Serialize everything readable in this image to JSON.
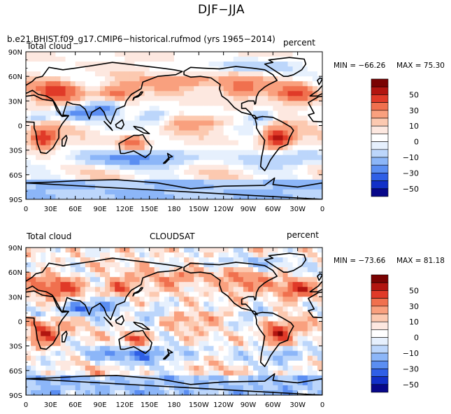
{
  "figure_title": "DJF−JJA",
  "chart_data": [
    {
      "type": "heatmap",
      "panel": "model",
      "title": "b.e21.BHIST.f09_g17.CMIP6−historical.rufmod (yrs 1965−2014)",
      "left_label": "Total cloud",
      "right_label": "percent",
      "center_label": "",
      "stats": {
        "min_label": "MIN = −66.26",
        "max_label": "MAX =  75.30",
        "min": -66.26,
        "max": 75.3
      },
      "x_ticks": [
        "0",
        "30E",
        "60E",
        "90E",
        "120E",
        "150E",
        "180",
        "150W",
        "120W",
        "90W",
        "60W",
        "30W",
        "0"
      ],
      "y_ticks": [
        "90N",
        "60N",
        "30N",
        "0",
        "30S",
        "60S",
        "90S"
      ],
      "xlim": [
        0,
        360
      ],
      "ylim": [
        -90,
        90
      ],
      "colorbar_levels": [
        -60,
        -50,
        -40,
        -30,
        -20,
        -10,
        -5,
        0,
        5,
        10,
        20,
        30,
        40,
        50,
        60
      ],
      "colorbar_labels": [
        "50",
        "30",
        "10",
        "0",
        "−10",
        "−30",
        "−50"
      ]
    },
    {
      "type": "heatmap",
      "panel": "observation",
      "title": "",
      "left_label": "Total cloud",
      "center_label": "CLOUDSAT",
      "right_label": "percent",
      "stats": {
        "min_label": "MIN = −73.66",
        "max_label": "MAX =  81.18",
        "min": -73.66,
        "max": 81.18
      },
      "x_ticks": [
        "0",
        "30E",
        "60E",
        "90E",
        "120E",
        "150E",
        "180",
        "150W",
        "120W",
        "90W",
        "60W",
        "30W",
        "0"
      ],
      "y_ticks": [
        "90N",
        "60N",
        "30N",
        "0",
        "30S",
        "60S",
        "90S"
      ],
      "xlim": [
        0,
        360
      ],
      "ylim": [
        -90,
        90
      ],
      "colorbar_levels": [
        -60,
        -50,
        -40,
        -30,
        -20,
        -10,
        -5,
        0,
        5,
        10,
        20,
        30,
        40,
        50,
        60
      ],
      "colorbar_labels": [
        "50",
        "30",
        "10",
        "0",
        "−10",
        "−30",
        "−50"
      ]
    }
  ],
  "colors": {
    "palette": [
      "#08088a",
      "#1230c8",
      "#2f5fe6",
      "#5b8ef2",
      "#8cb6f8",
      "#bcd6fb",
      "#e6f0fd",
      "#ffffff",
      "#fde8e0",
      "#fcc9b0",
      "#f9a07e",
      "#f0704e",
      "#e03a28",
      "#b21510",
      "#7a0303"
    ],
    "coast": "#000000"
  }
}
